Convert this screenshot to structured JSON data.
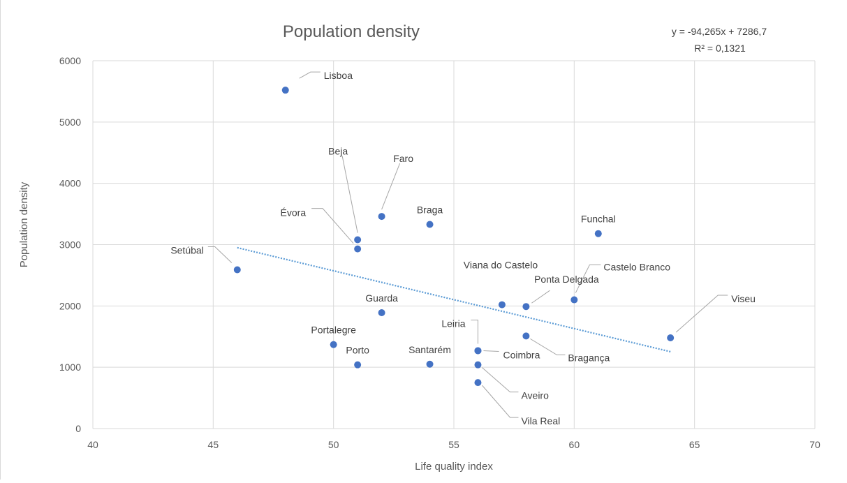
{
  "chart_data": {
    "type": "scatter",
    "title": "Population density",
    "xlabel": "Life quality index",
    "ylabel": "Population density",
    "xlim": [
      40,
      70
    ],
    "ylim": [
      0,
      6000
    ],
    "xticks": [
      40,
      45,
      50,
      55,
      60,
      65,
      70
    ],
    "yticks": [
      0,
      1000,
      2000,
      3000,
      4000,
      5000,
      6000
    ],
    "grid": true,
    "legend": "none",
    "marker_color": "#4472c4",
    "trendline": {
      "type": "linear",
      "slope": -94.265,
      "intercept": 7286.7,
      "x_range": [
        46,
        64
      ],
      "equation_label": "y = -94,265x + 7286,7",
      "r2_label": "R² = 0,1321",
      "color": "#5b9bd5",
      "style": "dotted"
    },
    "points": [
      {
        "label": "Lisboa",
        "x": 48,
        "y": 5520
      },
      {
        "label": "Beja",
        "x": 51,
        "y": 3080
      },
      {
        "label": "Faro",
        "x": 52,
        "y": 3460
      },
      {
        "label": "Évora",
        "x": 51,
        "y": 2930
      },
      {
        "label": "Braga",
        "x": 54,
        "y": 3330
      },
      {
        "label": "Funchal",
        "x": 61,
        "y": 3180
      },
      {
        "label": "Setúbal",
        "x": 46,
        "y": 2590
      },
      {
        "label": "Viana do Castelo",
        "x": 57,
        "y": 2020
      },
      {
        "label": "Ponta Delgada",
        "x": 58,
        "y": 1990
      },
      {
        "label": "Castelo Branco",
        "x": 60,
        "y": 2100
      },
      {
        "label": "Viseu",
        "x": 64,
        "y": 1480
      },
      {
        "label": "Guarda",
        "x": 52,
        "y": 1890
      },
      {
        "label": "Bragança",
        "x": 58,
        "y": 1510
      },
      {
        "label": "Leiria",
        "x": 56,
        "y": 1270
      },
      {
        "label": "Coimbra",
        "x": 56,
        "y": 1270
      },
      {
        "label": "Portalegre",
        "x": 50,
        "y": 1370
      },
      {
        "label": "Porto",
        "x": 51,
        "y": 1040
      },
      {
        "label": "Santarém",
        "x": 54,
        "y": 1050
      },
      {
        "label": "Aveiro",
        "x": 56,
        "y": 1040
      },
      {
        "label": "Vila Real",
        "x": 56,
        "y": 750
      }
    ]
  }
}
